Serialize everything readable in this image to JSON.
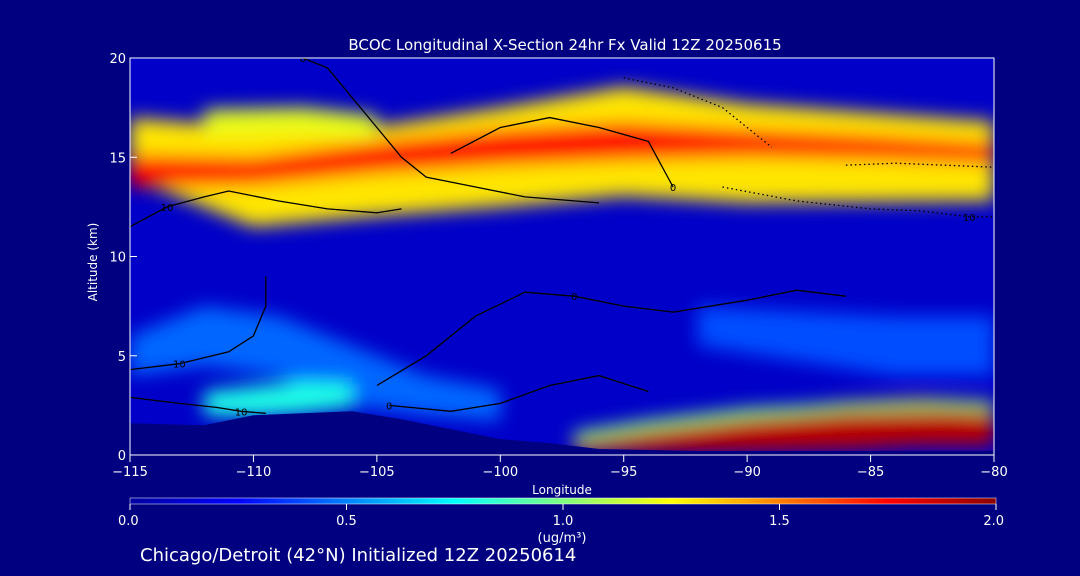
{
  "chart_data": {
    "type": "heatmap",
    "title": "BCOC Longitudinal X-Section 24hr  Fx Valid 12Z 20250615",
    "xlabel": "Longitude",
    "ylabel": "Altitude (km)",
    "xlim": [
      -115,
      -80
    ],
    "ylim": [
      0,
      20
    ],
    "xticks": [
      -115,
      -110,
      -105,
      -100,
      -95,
      -90,
      -85,
      -80
    ],
    "xtick_labels": [
      "−115",
      "−110",
      "−105",
      "−100",
      "−95",
      "−90",
      "−85",
      "−80"
    ],
    "yticks": [
      0,
      5,
      10,
      15,
      20
    ],
    "ytick_labels": [
      "0",
      "5",
      "10",
      "15",
      "20"
    ],
    "colorbar": {
      "min": 0.0,
      "max": 2.0,
      "ticks": [
        0.0,
        0.5,
        1.0,
        1.5,
        2.0
      ],
      "tick_labels": [
        "0.0",
        "0.5",
        "1.0",
        "1.5",
        "2.0"
      ],
      "unit_label": "(ug/m³)",
      "colors": [
        "#0000a0",
        "#0000ff",
        "#0080ff",
        "#00ffff",
        "#80ff80",
        "#ffff00",
        "#ff8000",
        "#ff0000",
        "#8b0000"
      ]
    },
    "terrain": {
      "lon": [
        -115,
        -112,
        -110,
        -108,
        -106,
        -104,
        -102,
        -100,
        -98,
        -96,
        -94,
        -92,
        -90,
        -88,
        -86,
        -84,
        -82,
        -80
      ],
      "height_km": [
        1.6,
        1.5,
        2.0,
        2.1,
        2.2,
        1.8,
        1.3,
        0.8,
        0.6,
        0.3,
        0.25,
        0.2,
        0.2,
        0.2,
        0.2,
        0.2,
        0.2,
        0.2
      ]
    },
    "concentration_bands": [
      {
        "lon": [
          -115,
          -110,
          -105,
          -100,
          -95,
          -90,
          -85,
          -80
        ],
        "alt_km": [
          15.5,
          14.0,
          14.3,
          15.0,
          15.8,
          15.2,
          15.0,
          14.8
        ],
        "thickness_km": [
          3.0,
          5.0,
          4.5,
          5.0,
          5.5,
          5.0,
          4.5,
          4.0
        ],
        "value": 1.3
      },
      {
        "lon": [
          -115,
          -110,
          -105,
          -100,
          -95,
          -90,
          -85,
          -80
        ],
        "alt_km": [
          14.3,
          14.3,
          15.0,
          15.5,
          15.8,
          15.7,
          15.5,
          15.2
        ],
        "thickness_km": [
          1.6,
          1.4,
          1.6,
          1.8,
          1.9,
          1.4,
          1.2,
          1.0
        ],
        "value": 1.75
      },
      {
        "lon": [
          -112,
          -108,
          -105
        ],
        "alt_km": [
          16.8,
          16.9,
          16.5
        ],
        "thickness_km": [
          1.2,
          1.2,
          1.2
        ],
        "value": 1.2
      },
      {
        "lon": [
          -115,
          -112,
          -109,
          -106,
          -103,
          -100
        ],
        "alt_km": [
          5.0,
          6.0,
          5.5,
          4.0,
          3.0,
          2.5
        ],
        "thickness_km": [
          2.0,
          3.0,
          3.0,
          3.0,
          2.0,
          1.6
        ],
        "value": 0.45
      },
      {
        "lon": [
          -112,
          -110,
          -108,
          -106
        ],
        "alt_km": [
          2.6,
          2.7,
          2.9,
          3.0
        ],
        "thickness_km": [
          1.2,
          1.5,
          1.6,
          1.2
        ],
        "value": 0.8
      },
      {
        "lon": [
          -92,
          -88,
          -84,
          -80
        ],
        "alt_km": [
          6.5,
          6.0,
          5.5,
          5.5
        ],
        "thickness_km": [
          2.0,
          2.5,
          3.0,
          3.0
        ],
        "value": 0.4
      },
      {
        "lon": [
          -97,
          -94,
          -90,
          -86,
          -83,
          -80
        ],
        "alt_km": [
          0.5,
          0.8,
          1.2,
          1.5,
          1.7,
          1.6
        ],
        "thickness_km": [
          0.8,
          1.4,
          2.0,
          2.4,
          2.4,
          2.2
        ],
        "value": 1.9
      },
      {
        "lon": [
          -97,
          -94,
          -90,
          -86,
          -82,
          -80
        ],
        "alt_km": [
          0.9,
          1.5,
          2.1,
          2.4,
          2.5,
          2.4
        ],
        "thickness_km": [
          0.5,
          0.5,
          0.5,
          0.4,
          0.4,
          0.4
        ],
        "value": 1.0
      }
    ],
    "contours": [
      {
        "label": "0",
        "style": "solid",
        "lon": [
          -108,
          -107,
          -106,
          -105,
          -104,
          -103,
          -101,
          -99,
          -97,
          -96
        ],
        "alt_km": [
          20,
          19.5,
          18.0,
          16.5,
          15.0,
          14.0,
          13.5,
          13.0,
          12.8,
          12.7
        ],
        "label_at": 0
      },
      {
        "label": "0",
        "style": "solid",
        "lon": [
          -102,
          -100,
          -98,
          -96,
          -94,
          -93
        ],
        "alt_km": [
          15.2,
          16.5,
          17.0,
          16.5,
          15.8,
          13.5
        ],
        "label_at": 5
      },
      {
        "label": "10",
        "style": "solid",
        "lon": [
          -115,
          -113.5,
          -112,
          -111,
          -109,
          -107,
          -105,
          -104
        ],
        "alt_km": [
          11.5,
          12.5,
          13.0,
          13.3,
          12.8,
          12.4,
          12.2,
          12.4
        ],
        "label_at": 1
      },
      {
        "label": "10",
        "style": "solid",
        "lon": [
          -115,
          -113,
          -111,
          -110,
          -109.5,
          -109.5
        ],
        "alt_km": [
          4.3,
          4.6,
          5.2,
          6.0,
          7.5,
          9.0
        ],
        "label_at": 1
      },
      {
        "label": "10",
        "style": "solid",
        "lon": [
          -115,
          -113,
          -111.5,
          -110.5,
          -109.5
        ],
        "alt_km": [
          2.9,
          2.6,
          2.4,
          2.2,
          2.1
        ],
        "label_at": 3
      },
      {
        "label": "0",
        "style": "solid",
        "lon": [
          -105,
          -103,
          -101,
          -99,
          -97,
          -95,
          -93,
          -90,
          -88,
          -86
        ],
        "alt_km": [
          3.5,
          5.0,
          7.0,
          8.2,
          8.0,
          7.5,
          7.2,
          7.8,
          8.3,
          8.0
        ],
        "label_at": 4
      },
      {
        "label": "0",
        "style": "solid",
        "lon": [
          -104.5,
          -102,
          -100,
          -98,
          -96,
          -94
        ],
        "alt_km": [
          2.5,
          2.2,
          2.6,
          3.5,
          4.0,
          3.2
        ],
        "label_at": 0
      },
      {
        "label": "10",
        "style": "dotted",
        "lon": [
          -91,
          -88,
          -85,
          -83,
          -81,
          -80
        ],
        "alt_km": [
          13.5,
          12.8,
          12.4,
          12.3,
          12.0,
          12.0
        ],
        "label_at": 4
      },
      {
        "label": "",
        "style": "dotted",
        "lon": [
          -95,
          -93,
          -91,
          -90,
          -89
        ],
        "alt_km": [
          19.0,
          18.5,
          17.5,
          16.5,
          15.5
        ],
        "label_at": -1
      },
      {
        "label": "",
        "style": "dotted",
        "lon": [
          -86,
          -84,
          -82,
          -80
        ],
        "alt_km": [
          14.6,
          14.7,
          14.6,
          14.5
        ],
        "label_at": -1
      }
    ]
  },
  "footer": {
    "caption": "Chicago/Detroit (42°N) Initialized 12Z 20250614"
  }
}
